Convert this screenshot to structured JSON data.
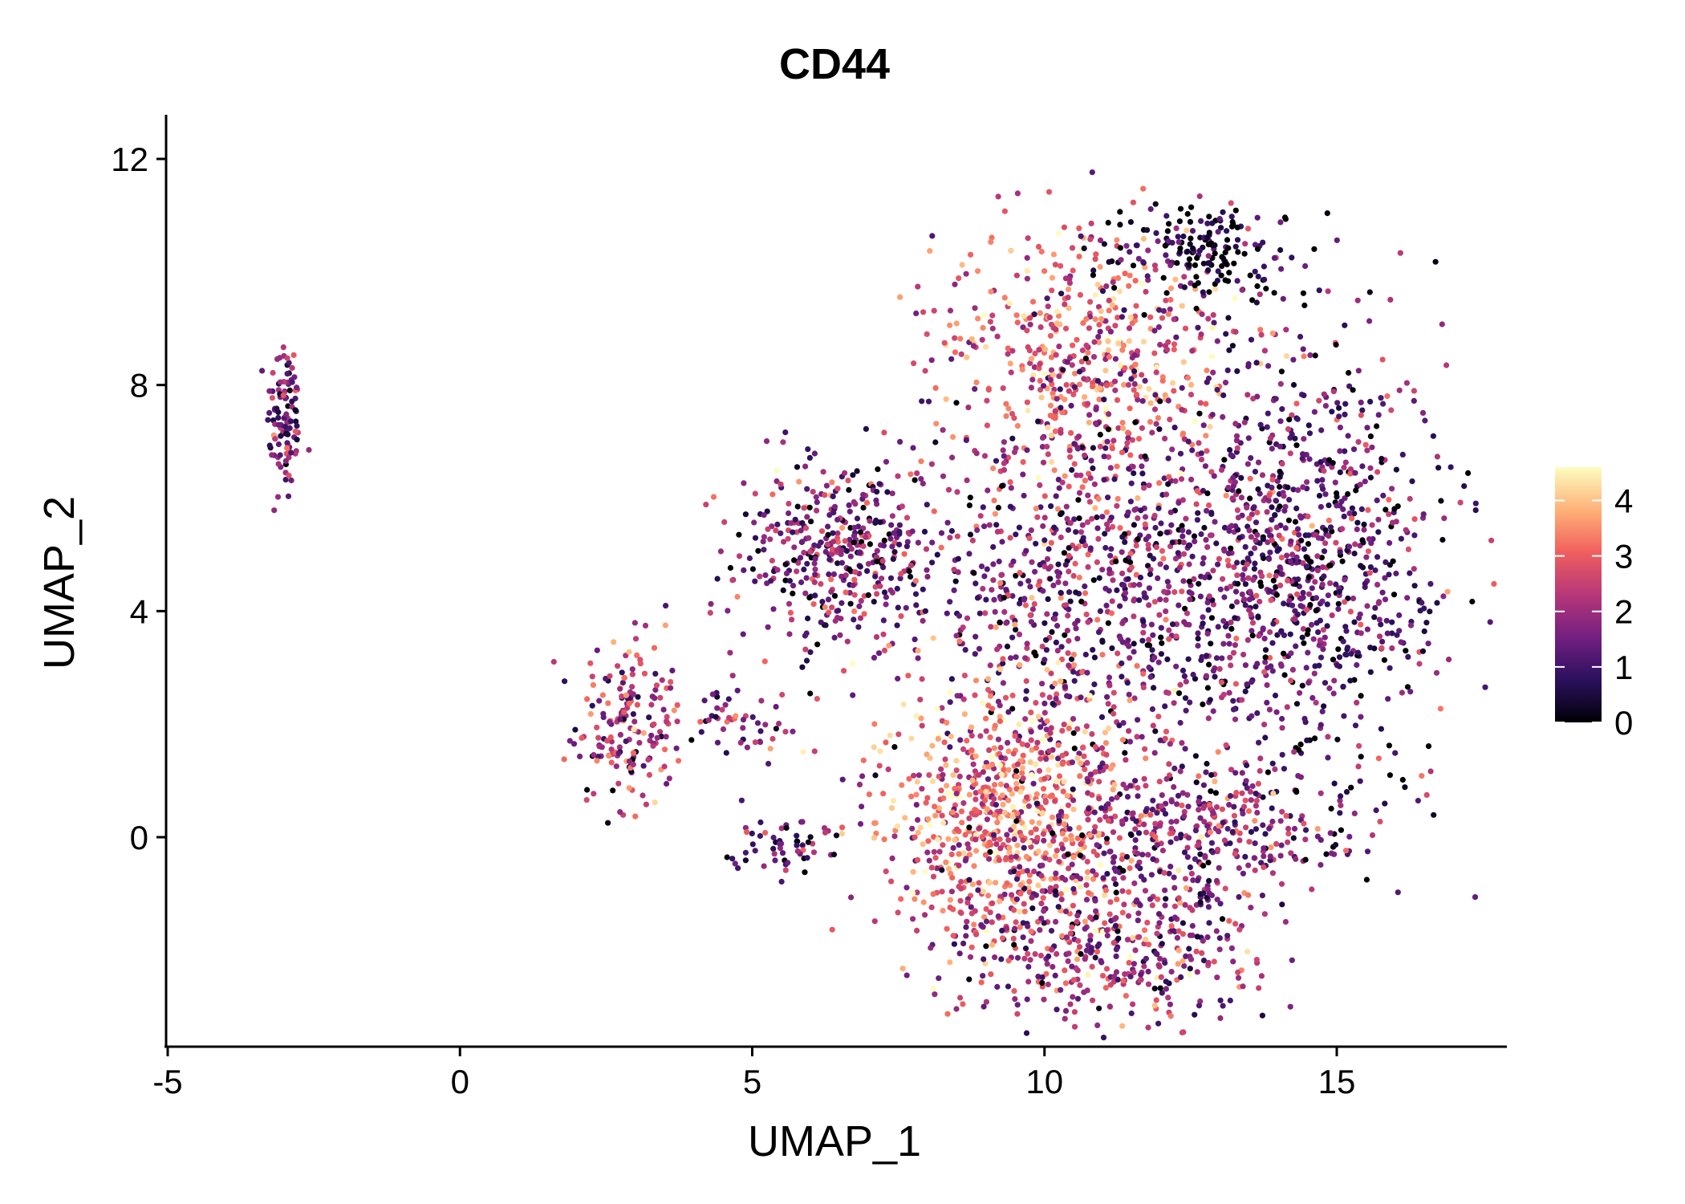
{
  "chart_data": {
    "type": "scatter",
    "title": "CD44",
    "xlabel": "UMAP_1",
    "ylabel": "UMAP_2",
    "xlim": [
      -5.1,
      18
    ],
    "ylim": [
      -3.7,
      12.8
    ],
    "x_ticks": [
      -5,
      0,
      5,
      10,
      15
    ],
    "y_ticks": [
      0,
      4,
      8,
      12
    ],
    "x_tick_labels": [
      "-5",
      "0",
      "5",
      "10",
      "15"
    ],
    "y_tick_labels": [
      "0",
      "4",
      "8",
      "12"
    ],
    "grid": false,
    "color_scale": {
      "name": "magma",
      "min": 0,
      "max": 4.6,
      "ticks": [
        0,
        1,
        2,
        3,
        4
      ],
      "tick_labels": [
        "0",
        "1",
        "2",
        "3",
        "4"
      ],
      "colors": [
        "#000004",
        "#2c115f",
        "#721f81",
        "#b73779",
        "#f1605d",
        "#feb078",
        "#fcfdbf"
      ],
      "legend_position": "right"
    },
    "clusters": [
      {
        "name": "left-thin-strip",
        "n": 110,
        "x_center": -3.0,
        "y_center": 7.4,
        "x_sd": 0.15,
        "y_sd": 0.75,
        "mean_expression": 1.6
      },
      {
        "name": "mid-left-island",
        "n": 180,
        "x_center": 2.9,
        "y_center": 2.0,
        "x_sd": 0.45,
        "y_sd": 0.75,
        "mean_expression": 2.1
      },
      {
        "name": "mid-streak",
        "n": 50,
        "x_center": 4.8,
        "y_center": 2.0,
        "x_sd": 0.6,
        "y_sd": 0.3,
        "mean_expression": 1.8
      },
      {
        "name": "small-bottom-island",
        "n": 60,
        "x_center": 5.5,
        "y_center": -0.1,
        "x_sd": 0.45,
        "y_sd": 0.25,
        "mean_expression": 1.2
      },
      {
        "name": "main-upper-left-arm",
        "n": 420,
        "x_center": 6.5,
        "y_center": 5.0,
        "x_sd": 0.9,
        "y_sd": 0.9,
        "mean_expression": 1.6
      },
      {
        "name": "main-top-hotspot",
        "n": 520,
        "x_center": 10.7,
        "y_center": 8.6,
        "x_sd": 1.3,
        "y_sd": 1.1,
        "mean_expression": 2.9
      },
      {
        "name": "main-top-right-edge",
        "n": 180,
        "x_center": 12.7,
        "y_center": 10.4,
        "x_sd": 0.9,
        "y_sd": 0.45,
        "mean_expression": 0.4
      },
      {
        "name": "main-right-lobe",
        "n": 900,
        "x_center": 14.5,
        "y_center": 4.8,
        "x_sd": 1.2,
        "y_sd": 1.9,
        "mean_expression": 1.2
      },
      {
        "name": "main-center",
        "n": 900,
        "x_center": 11.0,
        "y_center": 4.5,
        "x_sd": 1.6,
        "y_sd": 1.7,
        "mean_expression": 1.6
      },
      {
        "name": "main-bottom-hotspot",
        "n": 700,
        "x_center": 9.3,
        "y_center": 0.5,
        "x_sd": 1.0,
        "y_sd": 1.1,
        "mean_expression": 3.1
      },
      {
        "name": "main-bottom-lobe",
        "n": 500,
        "x_center": 11.0,
        "y_center": -1.8,
        "x_sd": 1.5,
        "y_sd": 0.75,
        "mean_expression": 1.9
      },
      {
        "name": "main-lower-band",
        "n": 350,
        "x_center": 12.5,
        "y_center": 0.2,
        "x_sd": 1.3,
        "y_sd": 0.5,
        "mean_expression": 1.9
      }
    ]
  }
}
